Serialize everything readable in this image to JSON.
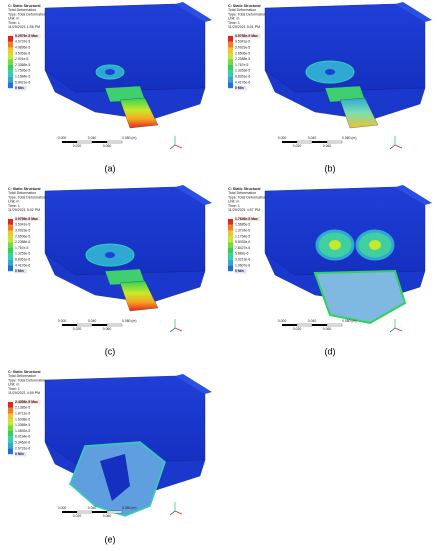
{
  "panels": [
    {
      "header": [
        "C: Static Structural",
        "Total Deformation",
        "Type: Total Deformation",
        "Unit: m",
        "Time: 1",
        "11/29/2021 1:56 PM"
      ],
      "legend": [
        "5.2579e-5 Max",
        "4.6737e-5",
        "4.0895e-5",
        "3.5053e-5",
        "2.921e-5",
        "2.3368e-5",
        "1.7526e-5",
        "1.1684e-5",
        "5.8421e-6",
        "0 Min"
      ],
      "scale_top": [
        "0.000",
        "0.040",
        "0.080 (m)"
      ],
      "scale_bottom": [
        "0.020",
        "0.060"
      ],
      "caption": "(a)"
    },
    {
      "header": [
        "C: Static Structural",
        "Total Deformation",
        "Type: Total Deformation",
        "Unit: m",
        "Time: 1",
        "11/29/2021 5:01 PM"
      ],
      "legend": [
        "3.9758e-5 Max",
        "3.5341e-5",
        "3.0923e-5",
        "2.6506e-5",
        "2.2088e-5",
        "1.767e-5",
        "1.3253e-5",
        "8.8351e-6",
        "4.4176e-6",
        "0 Min"
      ],
      "scale_top": [
        "0.000",
        "0.040",
        "0.080 (m)"
      ],
      "scale_bottom": [
        "0.020",
        "0.060"
      ],
      "caption": "(b)"
    },
    {
      "header": [
        "C: Static Structural",
        "Total Deformation",
        "Type: Total Deformation",
        "Unit: m",
        "Time: 1",
        "11/29/2021 5:02 PM"
      ],
      "legend": [
        "3.9758e-5 Max",
        "3.5341e-5",
        "3.0923e-5",
        "2.6506e-5",
        "2.2088e-5",
        "1.767e-5",
        "1.3253e-5",
        "8.8351e-6",
        "4.4176e-6",
        "0 Min"
      ],
      "scale_top": [
        "0.000",
        "0.040",
        "0.080 (m)"
      ],
      "scale_bottom": [
        "0.020",
        "0.060"
      ],
      "caption": "(c)"
    },
    {
      "header": [
        "C: Static Structural",
        "Total Deformation",
        "Type: Total Deformation",
        "Unit: m",
        "Time: 1",
        "11/29/2021 4:57 PM"
      ],
      "legend": [
        "1.7646e-5 Max",
        "1.5685e-5",
        "1.3724e-5",
        "1.1764e-5",
        "9.8033e-6",
        "7.8427e-6",
        "5.882e-6",
        "3.9213e-6",
        "1.9607e-6",
        "0 Min"
      ],
      "scale_top": [
        "0.000",
        "0.040",
        "0.080 (m)"
      ],
      "scale_bottom": [
        "0.020",
        "0.060"
      ],
      "caption": "(d)"
    },
    {
      "header": [
        "C: Static Structural",
        "Total Deformation",
        "Type: Total Deformation",
        "Unit: m",
        "Time: 1",
        "11/29/2021 4:59 PM"
      ],
      "legend": [
        "2.4058e-5 Max",
        "2.1385e-5",
        "1.8712e-5",
        "1.6038e-5",
        "1.3365e-5",
        "1.0692e-5",
        "8.0194e-6",
        "5.3462e-6",
        "2.6731e-6",
        "0 Min"
      ],
      "scale_top": [
        "0.000",
        "0.040",
        "0.080 (m)"
      ],
      "scale_bottom": [
        "0.020",
        "0.060"
      ],
      "caption": "(e)"
    }
  ]
}
